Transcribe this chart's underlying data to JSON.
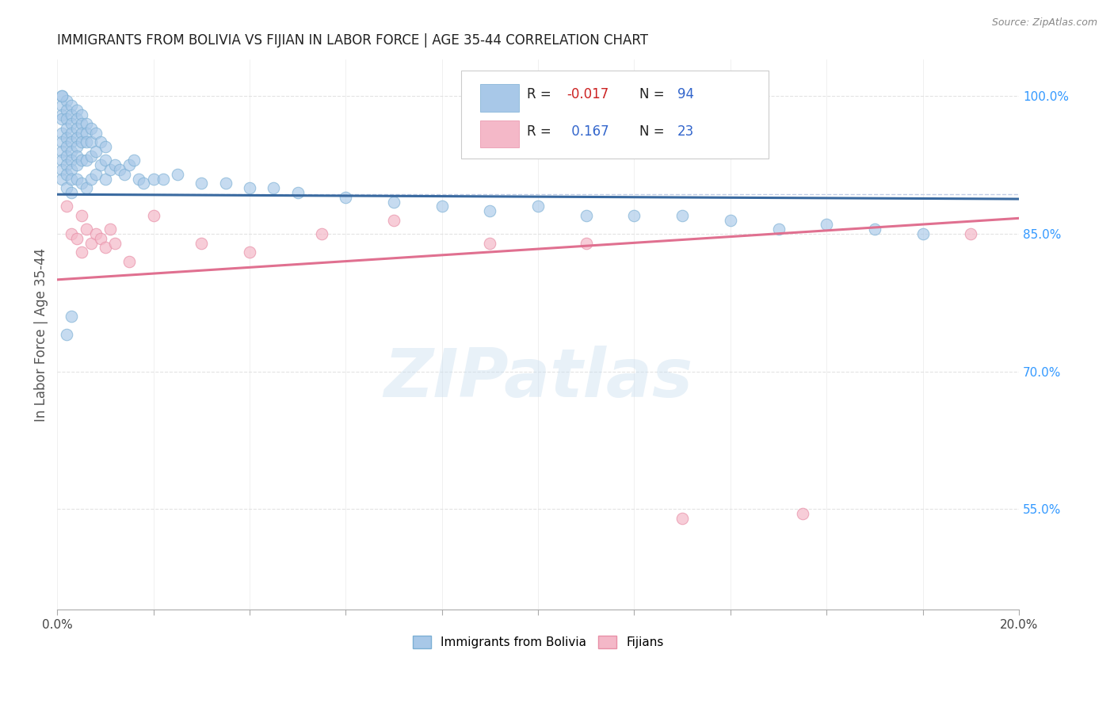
{
  "title": "IMMIGRANTS FROM BOLIVIA VS FIJIAN IN LABOR FORCE | AGE 35-44 CORRELATION CHART",
  "source": "Source: ZipAtlas.com",
  "ylabel": "In Labor Force | Age 35-44",
  "xlim": [
    0.0,
    0.2
  ],
  "ylim": [
    0.44,
    1.04
  ],
  "ytick_right_labels": [
    "55.0%",
    "70.0%",
    "85.0%",
    "100.0%"
  ],
  "ytick_right_positions": [
    0.55,
    0.7,
    0.85,
    1.0
  ],
  "bolivia_color": "#a8c8e8",
  "bolivia_edge_color": "#7bafd4",
  "fijian_color": "#f4b8c8",
  "fijian_edge_color": "#e890a8",
  "bolivia_line_color": "#3a6aa0",
  "fijian_line_color": "#e07090",
  "bolivia_n": 94,
  "fijian_n": 23,
  "legend_label1": "Immigrants from Bolivia",
  "legend_label2": "Fijians",
  "background_color": "#ffffff",
  "grid_color": "#cccccc",
  "watermark": "ZIPatlas",
  "bolivia_trend_y0": 0.893,
  "bolivia_trend_y1": 0.888,
  "fijian_trend_y0": 0.8,
  "fijian_trend_y1": 0.867,
  "dashed_line_y": 0.893
}
